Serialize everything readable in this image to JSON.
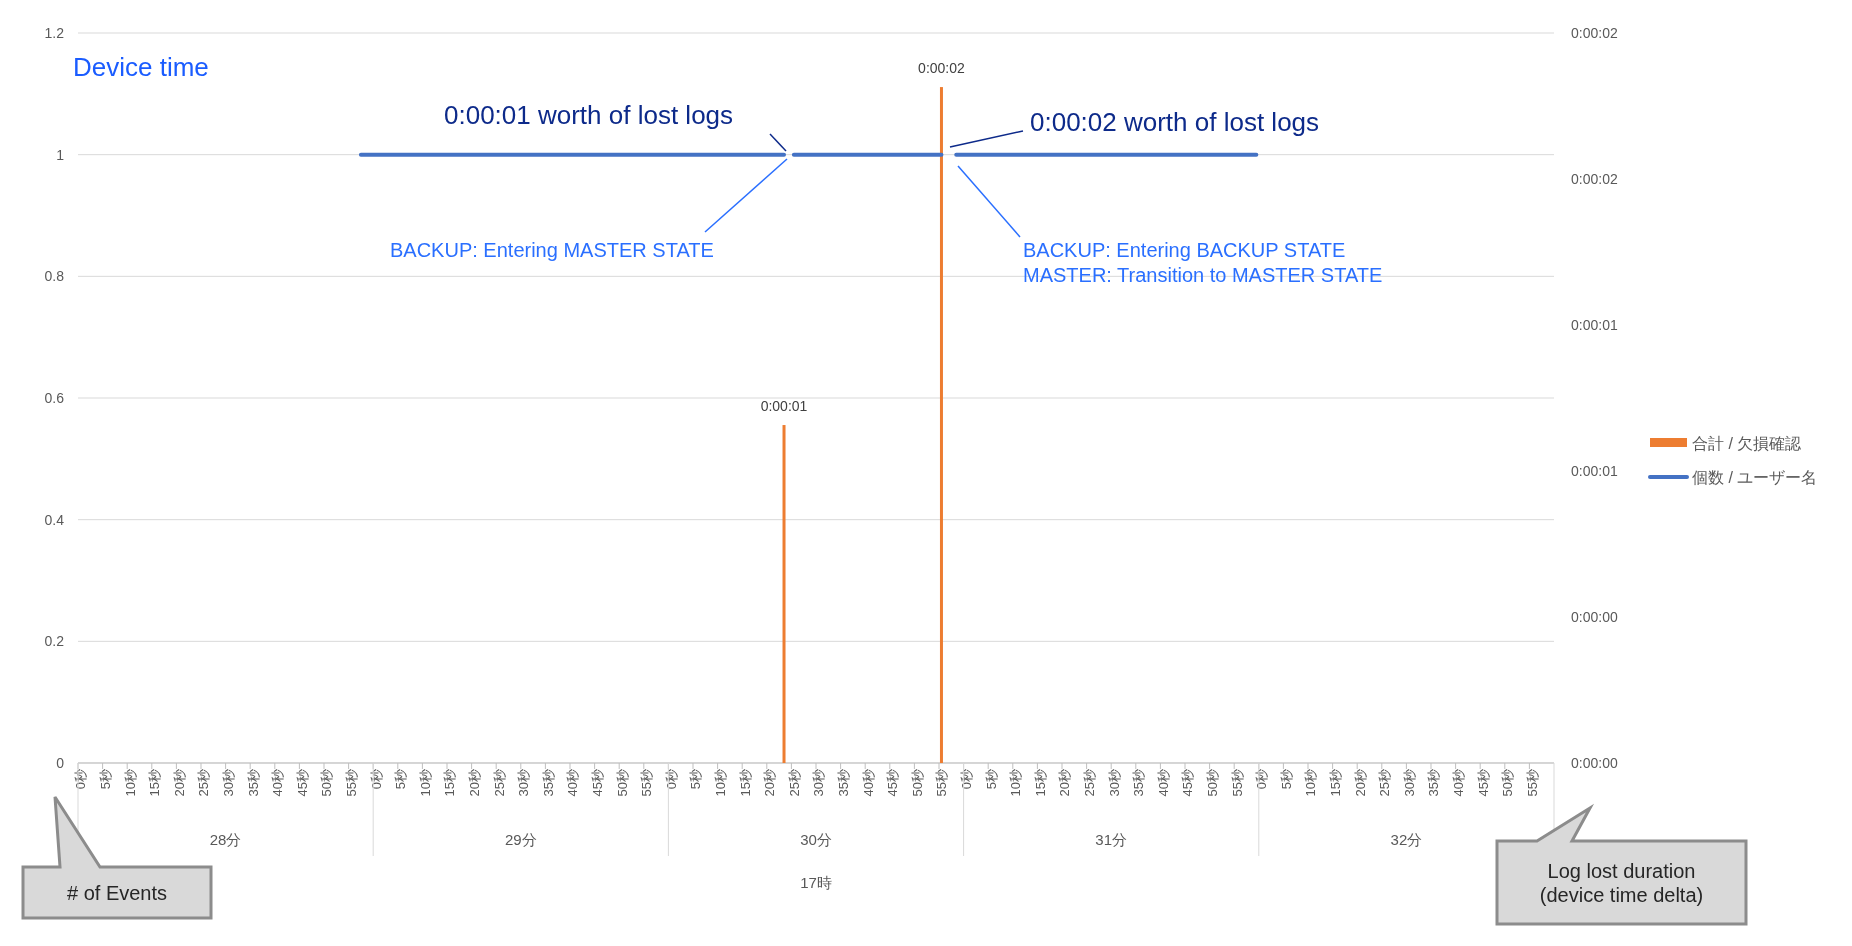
{
  "chart_data": {
    "type": "line",
    "title": "Device time",
    "y2label": "Log lost duration\n(device time delta)",
    "categories": [
      "0秒",
      null,
      null,
      null,
      null,
      "5秒",
      null,
      null,
      null,
      null,
      "10秒",
      null,
      null,
      null,
      null,
      "15秒",
      null,
      null,
      null,
      null,
      "20秒",
      null,
      null,
      null,
      null,
      "25秒",
      null,
      null,
      null,
      null,
      "30秒",
      null,
      null,
      null,
      null,
      "35秒",
      null,
      null,
      null,
      null,
      "40秒",
      null,
      null,
      null,
      null,
      "45秒",
      null,
      null,
      null,
      null,
      "50秒",
      null,
      null,
      null,
      null,
      "55秒",
      null,
      null,
      null,
      null,
      "0秒",
      null,
      null,
      null,
      null,
      "5秒",
      null,
      null,
      null,
      null,
      "10秒",
      null,
      null,
      null,
      null,
      "15秒",
      null,
      null,
      null,
      null,
      "20秒",
      null,
      null,
      null,
      null,
      "25秒",
      null,
      null,
      null,
      null,
      "30秒",
      null,
      null,
      null,
      null,
      "35秒",
      null,
      null,
      null,
      null,
      "40秒",
      null,
      null,
      null,
      null,
      "45秒",
      null,
      null,
      null,
      null,
      "50秒",
      null,
      null,
      null,
      null,
      "55秒",
      null,
      null,
      null,
      null,
      "0秒",
      null,
      null,
      null,
      null,
      "5秒",
      null,
      null,
      null,
      null,
      "10秒",
      null,
      null,
      null,
      null,
      "15秒",
      null,
      null,
      null,
      null,
      "20秒",
      null,
      null,
      null,
      null,
      "25秒",
      null,
      null,
      null,
      null,
      "30秒",
      null,
      null,
      null,
      null,
      "35秒",
      null,
      null,
      null,
      null,
      "40秒",
      null,
      null,
      null,
      null,
      "45秒",
      null,
      null,
      null,
      null,
      "50秒",
      null,
      null,
      null,
      null,
      "55秒",
      null,
      null,
      null,
      null,
      "0秒",
      null,
      null,
      null,
      null,
      "5秒",
      null,
      null,
      null,
      null,
      "10秒",
      null,
      null,
      null,
      null,
      "15秒",
      null,
      null,
      null,
      null,
      "20秒",
      null,
      null,
      null,
      null,
      "25秒",
      null,
      null,
      null,
      null,
      "30秒",
      null,
      null,
      null,
      null,
      "35秒",
      null,
      null,
      null,
      null,
      "40秒",
      null,
      null,
      null,
      null,
      "45秒",
      null,
      null,
      null,
      null,
      "50秒",
      null,
      null,
      null,
      null,
      "55秒",
      null,
      null,
      null,
      null,
      "0秒",
      null,
      null,
      null,
      null,
      "5秒",
      null,
      null,
      null,
      null,
      "10秒",
      null,
      null,
      null,
      null,
      "15秒",
      null,
      null,
      null,
      null,
      "20秒",
      null,
      null,
      null,
      null,
      "25秒",
      null,
      null,
      null,
      null,
      "30秒",
      null,
      null,
      null,
      null,
      "35秒",
      null,
      null,
      null,
      null,
      "40秒",
      null,
      null,
      null,
      null,
      "45秒",
      null,
      null,
      null,
      null,
      "50秒",
      null,
      null,
      null,
      null,
      "55秒",
      null,
      null,
      null,
      null
    ],
    "ylim": [
      0,
      1.2
    ],
    "yticks": [
      0,
      0.2,
      0.4,
      0.6,
      0.8,
      1,
      1.2
    ],
    "y2lim": [
      0,
      2.16
    ],
    "y2ticks": [
      {
        "value": 0,
        "label": "0:00:00"
      },
      {
        "value": 0.432,
        "label": "0:00:00"
      },
      {
        "value": 0.864,
        "label": "0:00:01"
      },
      {
        "value": 1.296,
        "label": "0:00:01"
      },
      {
        "value": 1.728,
        "label": "0:00:02"
      },
      {
        "value": 2.16,
        "label": "0:00:02"
      }
    ],
    "grid": "y",
    "legend": "right",
    "series": [
      {
        "name": "合計 / 欠損確認",
        "type": "bar",
        "axis": "y2",
        "color": "#ed7d31",
        "values": [
          null,
          null,
          null,
          null,
          null,
          null,
          null,
          null,
          null,
          null,
          null,
          null,
          null,
          null,
          null,
          null,
          null,
          null,
          null,
          null,
          null,
          null,
          null,
          null,
          null,
          null,
          null,
          null,
          null,
          null,
          null,
          null,
          null,
          null,
          null,
          null,
          null,
          null,
          null,
          null,
          null,
          null,
          null,
          null,
          null,
          null,
          null,
          null,
          null,
          null,
          null,
          null,
          null,
          null,
          null,
          null,
          null,
          null,
          null,
          null,
          null,
          null,
          null,
          null,
          null,
          null,
          null,
          null,
          null,
          null,
          null,
          null,
          null,
          null,
          null,
          null,
          null,
          null,
          null,
          null,
          null,
          null,
          null,
          null,
          null,
          null,
          null,
          null,
          null,
          null,
          null,
          null,
          null,
          null,
          null,
          null,
          null,
          null,
          null,
          null,
          null,
          null,
          null,
          null,
          null,
          null,
          null,
          null,
          null,
          null,
          null,
          null,
          null,
          null,
          null,
          null,
          null,
          null,
          null,
          null,
          null,
          null,
          null,
          null,
          null,
          null,
          null,
          null,
          null,
          null,
          null,
          null,
          null,
          null,
          null,
          null,
          null,
          null,
          null,
          null,
          null,
          null,
          null,
          1,
          null,
          null,
          null,
          null,
          null,
          null,
          null,
          null,
          null,
          null,
          null,
          null,
          null,
          null,
          null,
          null,
          null,
          null,
          null,
          null,
          null,
          null,
          null,
          null,
          null,
          null,
          null,
          null,
          null,
          null,
          null,
          2,
          null,
          null,
          null,
          null,
          null,
          null,
          null,
          null,
          null,
          null,
          null,
          null,
          null,
          null,
          null,
          null,
          null,
          null,
          null,
          null,
          null,
          null,
          null,
          null,
          null,
          null,
          null,
          null,
          null,
          null,
          null,
          null,
          null,
          null,
          null,
          null,
          null,
          null,
          null,
          null,
          null,
          null,
          null,
          null,
          null,
          null,
          null,
          null,
          null,
          null,
          null,
          null,
          null,
          null,
          null,
          null,
          null,
          null,
          null,
          null,
          null,
          null,
          null,
          null,
          null,
          null,
          null,
          null,
          null,
          null,
          null,
          null,
          null,
          null,
          null,
          null,
          null,
          null,
          null,
          null,
          null,
          null,
          null,
          null,
          null,
          null,
          null,
          null,
          null,
          null,
          null,
          null,
          null,
          null,
          null,
          null,
          null,
          null,
          null,
          null,
          null,
          null,
          null,
          null,
          null,
          null,
          null,
          null,
          null,
          null,
          null,
          null,
          null,
          null,
          null,
          null,
          null,
          null,
          null,
          null,
          null,
          null,
          null,
          null
        ],
        "value_labels": [
          null,
          null,
          null,
          null,
          null,
          null,
          null,
          null,
          null,
          null,
          null,
          null,
          null,
          null,
          null,
          null,
          null,
          null,
          null,
          null,
          null,
          null,
          null,
          null,
          null,
          null,
          null,
          null,
          null,
          null,
          null,
          null,
          null,
          null,
          null,
          null,
          null,
          null,
          null,
          null,
          null,
          null,
          null,
          null,
          null,
          null,
          null,
          null,
          null,
          null,
          null,
          null,
          null,
          null,
          null,
          null,
          null,
          null,
          null,
          null,
          null,
          null,
          null,
          null,
          null,
          null,
          null,
          null,
          null,
          null,
          null,
          null,
          null,
          null,
          null,
          null,
          null,
          null,
          null,
          null,
          null,
          null,
          null,
          null,
          null,
          null,
          null,
          null,
          null,
          null,
          null,
          null,
          null,
          null,
          null,
          null,
          null,
          null,
          null,
          null,
          null,
          null,
          null,
          null,
          null,
          null,
          null,
          null,
          null,
          null,
          null,
          null,
          null,
          null,
          null,
          null,
          null,
          null,
          null,
          null,
          null,
          null,
          null,
          null,
          null,
          null,
          null,
          null,
          null,
          null,
          null,
          null,
          null,
          null,
          null,
          null,
          null,
          null,
          null,
          null,
          null,
          null,
          null,
          "0:00:01",
          null,
          null,
          null,
          null,
          null,
          null,
          null,
          null,
          null,
          null,
          null,
          null,
          null,
          null,
          null,
          null,
          null,
          null,
          null,
          null,
          null,
          null,
          null,
          null,
          null,
          null,
          null,
          null,
          null,
          null,
          null,
          "0:00:02",
          null,
          null,
          null,
          null,
          null,
          null,
          null,
          null,
          null,
          null,
          null,
          null,
          null,
          null,
          null,
          null,
          null,
          null,
          null,
          null,
          null,
          null,
          null,
          null,
          null,
          null,
          null,
          null,
          null,
          null,
          null,
          null,
          null,
          null,
          null,
          null,
          null,
          null,
          null,
          null,
          null,
          null,
          null,
          null,
          null,
          null,
          null,
          null,
          null,
          null,
          null,
          null,
          null,
          null,
          null,
          null,
          null,
          null,
          null,
          null,
          null,
          null,
          null,
          null,
          null,
          null,
          null,
          null,
          null,
          null,
          null,
          null,
          null,
          null,
          null,
          null,
          null,
          null,
          null,
          null,
          null,
          null,
          null,
          null,
          null,
          null,
          null,
          null,
          null,
          null,
          null,
          null,
          null,
          null,
          null,
          null,
          null,
          null,
          null,
          null,
          null,
          null,
          null,
          null,
          null,
          null,
          null,
          null,
          null,
          null,
          null,
          null,
          null,
          null,
          null,
          null,
          null,
          null,
          null,
          null,
          null,
          null,
          null,
          null
        ]
      },
      {
        "name": "個数 / ユーザー名",
        "color": "#4472c4",
        "values": [
          null,
          null,
          null,
          null,
          null,
          null,
          null,
          null,
          null,
          null,
          null,
          null,
          null,
          null,
          null,
          null,
          null,
          null,
          null,
          null,
          null,
          null,
          null,
          null,
          null,
          null,
          null,
          null,
          null,
          null,
          null,
          null,
          null,
          null,
          null,
          null,
          null,
          null,
          null,
          null,
          null,
          null,
          null,
          null,
          null,
          null,
          null,
          null,
          null,
          null,
          null,
          null,
          null,
          null,
          null,
          null,
          null,
          1,
          1,
          1,
          1,
          1,
          1,
          1,
          1,
          1,
          1,
          1,
          1,
          1,
          1,
          1,
          1,
          1,
          1,
          1,
          1,
          1,
          1,
          1,
          1,
          1,
          1,
          1,
          1,
          1,
          1,
          1,
          1,
          1,
          1,
          1,
          1,
          1,
          1,
          1,
          1,
          1,
          1,
          1,
          1,
          1,
          1,
          1,
          1,
          1,
          1,
          1,
          1,
          1,
          1,
          1,
          1,
          1,
          1,
          1,
          1,
          1,
          1,
          1,
          1,
          1,
          1,
          1,
          1,
          1,
          1,
          1,
          1,
          1,
          1,
          1,
          1,
          1,
          1,
          1,
          1,
          1,
          1,
          1,
          1,
          1,
          1,
          1,
          null,
          1,
          1,
          1,
          1,
          1,
          1,
          1,
          1,
          1,
          1,
          1,
          1,
          1,
          1,
          1,
          1,
          1,
          1,
          1,
          1,
          1,
          1,
          1,
          1,
          1,
          1,
          1,
          1,
          1,
          1,
          1,
          null,
          null,
          1,
          1,
          1,
          1,
          1,
          1,
          1,
          1,
          1,
          1,
          1,
          1,
          1,
          1,
          1,
          1,
          1,
          1,
          1,
          1,
          1,
          1,
          1,
          1,
          1,
          1,
          1,
          1,
          1,
          1,
          1,
          1,
          1,
          1,
          1,
          1,
          1,
          1,
          1,
          1,
          1,
          1,
          1,
          1,
          1,
          1,
          1,
          1,
          1,
          1,
          1,
          1,
          1,
          1,
          1,
          1,
          1,
          1,
          1,
          1,
          1,
          1,
          null,
          null,
          null,
          null,
          null,
          null,
          null,
          null,
          null,
          null,
          null,
          null,
          null,
          null,
          null,
          null,
          null,
          null,
          null,
          null,
          null,
          null,
          null,
          null,
          null,
          null,
          null,
          null,
          null,
          null,
          null,
          null,
          null,
          null,
          null,
          null,
          null,
          null,
          null,
          null,
          null,
          null,
          null,
          null,
          null,
          null,
          null,
          null,
          null,
          null,
          null,
          null,
          null,
          null,
          null,
          null,
          null,
          null,
          null,
          null
        ]
      }
    ],
    "annotations": [
      "0:00:01 worth of lost logs",
      "0:00:02 worth of lost logs",
      "BACKUP: Entering MASTER STATE",
      "BACKUP: Entering BACKUP STATE\nMASTER: Transition to MASTER STATE",
      "28分",
      "29分",
      "30分",
      "31分",
      "32分",
      "17時",
      "# of Events"
    ]
  }
}
